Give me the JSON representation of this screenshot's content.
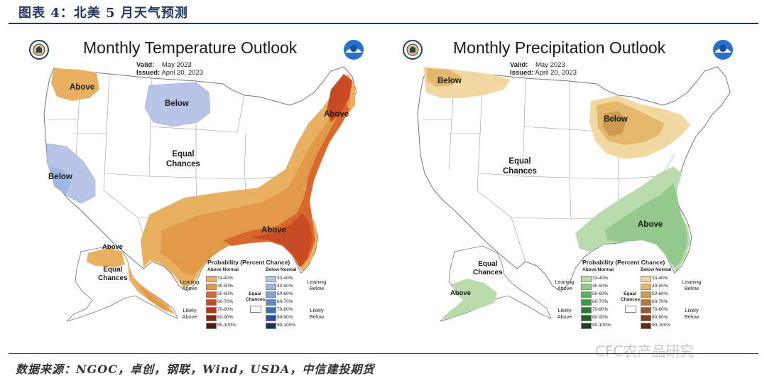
{
  "figure_title": "图表 4：北美 5 月天气预测",
  "source": "数据来源：NGOC，卓创，钢联，Wind，USDA，中信建投期货",
  "watermark": "CFC农产品研究",
  "temperature": {
    "title": "Monthly Temperature Outlook",
    "valid_label": "Valid:",
    "valid": "May 2023",
    "issued_label": "Issued:",
    "issued": "April 20, 2023",
    "labels": {
      "above_nw": "Above",
      "below_north": "Below",
      "below_west": "Below",
      "equal": "Equal\nChances",
      "above_ne": "Above",
      "above_se": "Above",
      "alaska_above": "Above",
      "alaska_equal": "Equal\nChances"
    },
    "legend": {
      "title": "Probability (Percent Chance)",
      "col_left": "Above Normal",
      "col_right": "Below Normal",
      "left_pcts": [
        "33-40%",
        "40-50%",
        "50-60%",
        "60-70%",
        "70-80%",
        "80-90%",
        "90-100%"
      ],
      "right_pcts": [
        "33-40%",
        "40-50%",
        "50-60%",
        "60-70%",
        "70-80%",
        "80-90%",
        "90-100%"
      ],
      "left_colors": [
        "#e8b060",
        "#e39a48",
        "#d9682e",
        "#c84b23",
        "#a83a1d",
        "#7d2a16",
        "#55190d"
      ],
      "right_colors": [
        "#b8c5e6",
        "#9fb6e0",
        "#7ea6d8",
        "#5a8ccc",
        "#3b70b8",
        "#2a4f9a",
        "#1b2f73"
      ],
      "leaning_left": "Leaning\nAbove",
      "likely_left": "Likely\nAbove",
      "leaning_right": "Leaning\nBelow",
      "likely_right": "Likely\nBelow",
      "equal": "Equal\nChances"
    }
  },
  "precipitation": {
    "title": "Monthly Precipitation Outlook",
    "valid_label": "Valid:",
    "valid": "May 2023",
    "issued_label": "Issued:",
    "issued": "April 20, 2023",
    "labels": {
      "below_nw": "Below",
      "below_lakes": "Below",
      "equal": "Equal\nChances",
      "above_se": "Above",
      "alaska_equal": "Equal\nChances",
      "alaska_above": "Above"
    },
    "legend": {
      "title": "Probability (Percent Chance)",
      "col_left": "Above Normal",
      "col_right": "Below Normal",
      "left_pcts": [
        "33-40%",
        "40-50%",
        "50-60%",
        "60-70%",
        "70-80%",
        "80-90%",
        "90-100%"
      ],
      "right_pcts": [
        "33-40%",
        "40-50%",
        "50-60%",
        "60-70%",
        "70-80%",
        "80-90%",
        "90-100%"
      ],
      "left_colors": [
        "#b9dcac",
        "#93c98a",
        "#5faf5d",
        "#3b9a45",
        "#2a7d36",
        "#1f6128",
        "#14421b"
      ],
      "right_colors": [
        "#f2d9a2",
        "#e3b86a",
        "#cf9a4f",
        "#b9773d",
        "#9a5a2e",
        "#7a4322",
        "#5a2e16"
      ],
      "leaning_left": "Leaning\nAbove",
      "likely_left": "Likely\nAbove",
      "leaning_right": "Leaning\nBelow",
      "likely_right": "Likely\nBelow",
      "equal": "Equal\nChances"
    }
  }
}
